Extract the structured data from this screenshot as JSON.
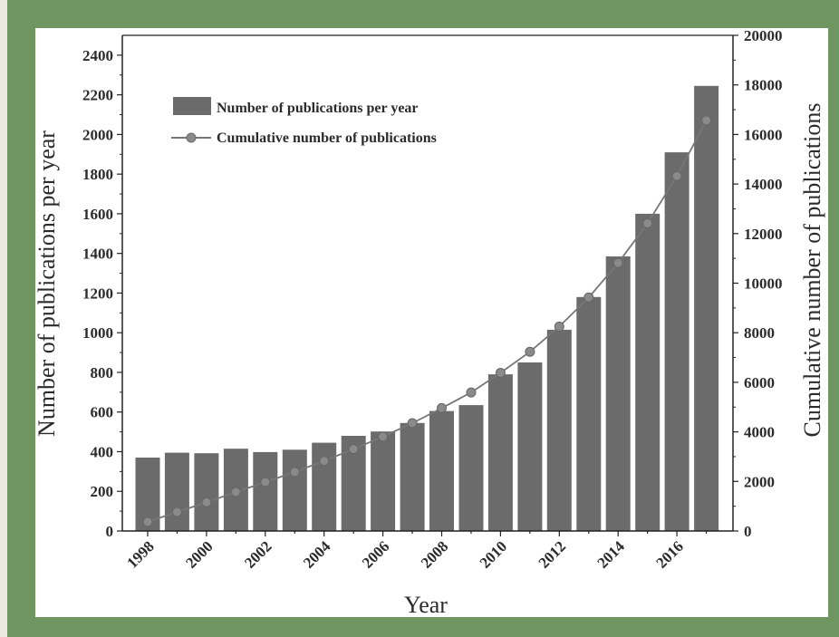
{
  "chart_data": {
    "type": "bar",
    "xlabel": "Year",
    "ylabel": "Number of publications per year",
    "y2label": "Cumulative number of publications",
    "ylim": [
      0,
      2500
    ],
    "y2lim": [
      0,
      20000
    ],
    "y_ticks": [
      "0",
      "200",
      "400",
      "600",
      "800",
      "1000",
      "1200",
      "1400",
      "1600",
      "1800",
      "2000",
      "2200",
      "2400"
    ],
    "y2_ticks": [
      "0",
      "2000",
      "4000",
      "6000",
      "8000",
      "10000",
      "12000",
      "14000",
      "16000",
      "18000",
      "20000"
    ],
    "x_tick_labels": [
      "1998",
      "2000",
      "2002",
      "2004",
      "2006",
      "2008",
      "2010",
      "2012",
      "2014",
      "2016"
    ],
    "categories": [
      1998,
      1999,
      2000,
      2001,
      2002,
      2003,
      2004,
      2005,
      2006,
      2007,
      2008,
      2009,
      2010,
      2011,
      2012,
      2013,
      2014,
      2015,
      2016,
      2017
    ],
    "series": [
      {
        "name": "Number of publications per year",
        "kind": "bar",
        "axis": "left",
        "values": [
          370,
          395,
          392,
          415,
          398,
          410,
          445,
          480,
          502,
          545,
          605,
          635,
          790,
          850,
          1015,
          1180,
          1385,
          1600,
          1910,
          2245
        ]
      },
      {
        "name": "Cumulative number of publications",
        "kind": "line",
        "axis": "right",
        "values": [
          370,
          765,
          1157,
          1572,
          1970,
          2380,
          2825,
          3305,
          3807,
          4352,
          4957,
          5592,
          6382,
          7232,
          8247,
          9427,
          10812,
          12412,
          14322,
          16567
        ]
      }
    ],
    "legend_position": "top-left",
    "grid": false,
    "colors": {
      "bar": "#6b6b6b",
      "line": "#777777",
      "marker": "#8a8a8a"
    }
  }
}
